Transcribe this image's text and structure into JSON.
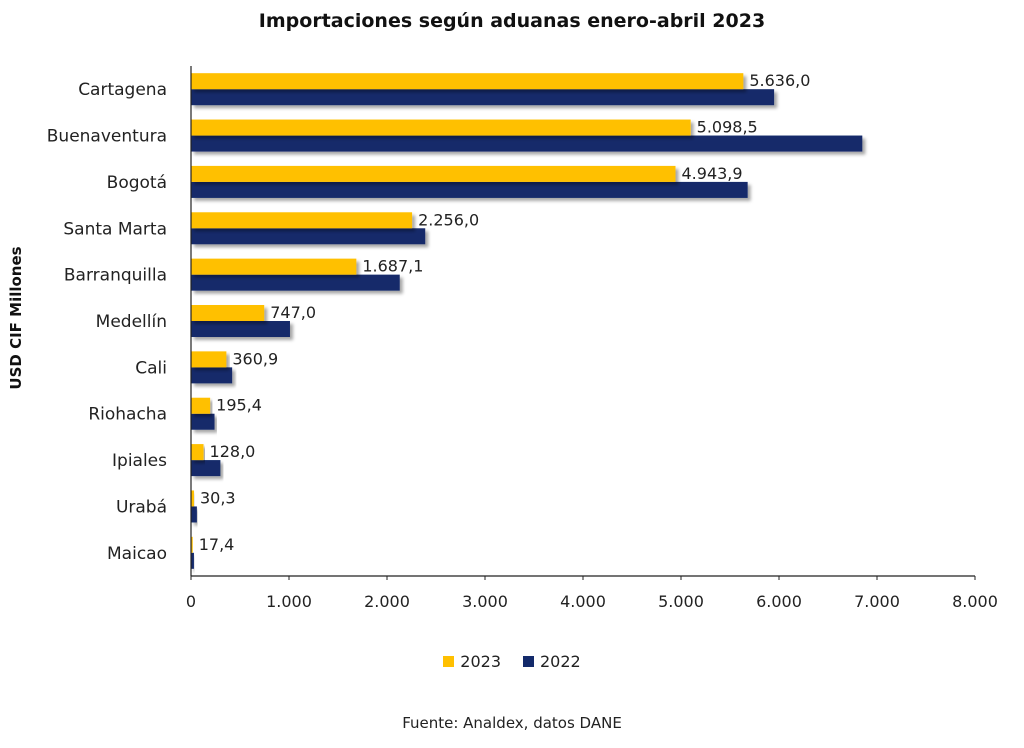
{
  "chart_data": {
    "type": "bar",
    "orientation": "horizontal",
    "title": "Importaciones según aduanas enero-abril 2023",
    "ylabel": "USD CIF Millones",
    "categories": [
      "Cartagena",
      "Buenaventura",
      "Bogotá",
      "Santa Marta",
      "Barranquilla",
      "Medellín",
      "Cali",
      "Riohacha",
      "Ipiales",
      "Urabá",
      "Maicao"
    ],
    "series": [
      {
        "name": "2023",
        "color": "#FFC000",
        "values": [
          5636.0,
          5098.5,
          4943.9,
          2256.0,
          1687.1,
          747.0,
          360.9,
          195.4,
          128.0,
          30.3,
          17.4
        ],
        "labels": [
          "5.636,0",
          "5.098,5",
          "4.943,9",
          "2.256,0",
          "1.687,1",
          "747,0",
          "360,9",
          "195,4",
          "128,0",
          "30,3",
          "17,4"
        ]
      },
      {
        "name": "2022",
        "color": "#132A6B",
        "values": [
          5950,
          6850,
          5680,
          2390,
          2130,
          1010,
          420,
          240,
          300,
          60,
          30
        ]
      }
    ],
    "xlim": [
      0,
      8000
    ],
    "xticks": [
      "0",
      "1.000",
      "2.000",
      "3.000",
      "4.000",
      "5.000",
      "6.000",
      "7.000",
      "8.000"
    ],
    "legend": "bottom",
    "source": "Fuente: Analdex, datos DANE"
  }
}
